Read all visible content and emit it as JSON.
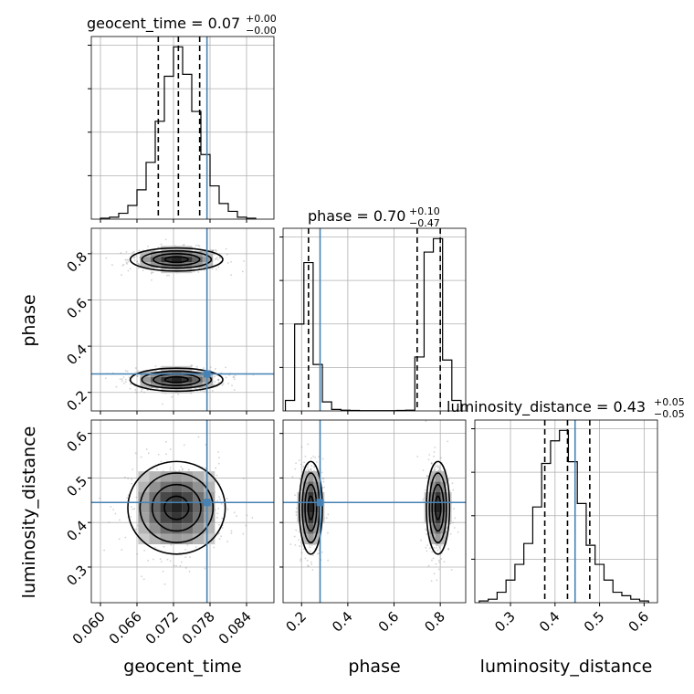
{
  "figure": {
    "type": "corner-plot",
    "parameters": [
      "geocent_time",
      "phase",
      "luminosity_distance"
    ]
  },
  "panel_titles": {
    "geocent_time": {
      "label": "geocent_time = 0.07",
      "sup": "+0.00",
      "sub": "−0.00"
    },
    "phase": {
      "label": "phase = 0.70",
      "sup": "+0.10",
      "sub": "−0.47"
    },
    "luminosity_distance": {
      "label": "luminosity_distance = 0.43",
      "sup": "+0.05",
      "sub": "−0.05"
    }
  },
  "axis_labels": {
    "geocent_time": "geocent_time",
    "phase": "phase",
    "luminosity_distance": "luminosity_distance"
  },
  "colors": {
    "truth": "#4682b4",
    "histogram": "#000000",
    "grid": "#b0b0b0",
    "samples": "#7f7f7f"
  },
  "chart_data": {
    "type": "corner",
    "grid": true,
    "truths": {
      "geocent_time": 0.0775,
      "phase": 0.28,
      "luminosity_distance": 0.445
    },
    "ranges": {
      "geocent_time": [
        0.0585,
        0.0885
      ],
      "phase": [
        0.12,
        0.91
      ],
      "luminosity_distance": [
        0.22,
        0.63
      ]
    },
    "ticks": {
      "geocent_time": {
        "values": [
          0.06,
          0.066,
          0.072,
          0.078,
          0.084
        ],
        "labels": [
          "0.060",
          "0.066",
          "0.072",
          "0.078",
          "0.084"
        ]
      },
      "phase": {
        "values": [
          0.2,
          0.4,
          0.6,
          0.8
        ],
        "labels": [
          "0.2",
          "0.4",
          "0.6",
          "0.8"
        ]
      },
      "luminosity_distance": {
        "values": [
          0.3,
          0.4,
          0.5,
          0.6
        ],
        "labels": [
          "0.3",
          "0.4",
          "0.5",
          "0.6"
        ]
      }
    },
    "quantiles": {
      "geocent_time": [
        0.0695,
        0.0728,
        0.0763
      ],
      "phase": [
        0.23,
        0.7,
        0.8
      ],
      "luminosity_distance": [
        0.377,
        0.428,
        0.478
      ]
    },
    "histograms": {
      "geocent_time": {
        "bin_edges": [
          0.06,
          0.0615,
          0.063,
          0.0645,
          0.066,
          0.0675,
          0.069,
          0.0705,
          0.072,
          0.0735,
          0.075,
          0.0765,
          0.078,
          0.0795,
          0.081,
          0.0825,
          0.084,
          0.0855
        ],
        "counts": [
          0.005,
          0.01,
          0.03,
          0.07,
          0.15,
          0.29,
          0.5,
          0.73,
          0.88,
          0.74,
          0.55,
          0.33,
          0.17,
          0.08,
          0.04,
          0.01,
          0.005
        ]
      },
      "phase": {
        "bin_edges": [
          0.13,
          0.17,
          0.21,
          0.25,
          0.29,
          0.33,
          0.37,
          0.41,
          0.45,
          0.49,
          0.53,
          0.57,
          0.61,
          0.65,
          0.69,
          0.73,
          0.77,
          0.81,
          0.85,
          0.89
        ],
        "counts": [
          0.07,
          0.58,
          0.99,
          0.31,
          0.06,
          0.01,
          0.005,
          0.003,
          0.002,
          0.002,
          0.002,
          0.002,
          0.003,
          0.005,
          0.36,
          1.06,
          1.15,
          0.34,
          0.07
        ]
      },
      "luminosity_distance": {
        "bin_edges": [
          0.23,
          0.25,
          0.27,
          0.29,
          0.31,
          0.33,
          0.35,
          0.37,
          0.39,
          0.41,
          0.43,
          0.45,
          0.47,
          0.49,
          0.51,
          0.53,
          0.55,
          0.57,
          0.59,
          0.61
        ],
        "counts": [
          0.01,
          0.02,
          0.06,
          0.13,
          0.22,
          0.34,
          0.55,
          0.8,
          0.93,
          0.99,
          0.81,
          0.57,
          0.33,
          0.22,
          0.13,
          0.06,
          0.04,
          0.02,
          0.01
        ]
      }
    },
    "density_2d": [
      {
        "x": "geocent_time",
        "y": "phase",
        "modes": [
          {
            "center": [
              0.0725,
              0.775
            ],
            "sigma": [
              0.0038,
              0.025
            ]
          },
          {
            "center": [
              0.0725,
              0.255
            ],
            "sigma": [
              0.0038,
              0.025
            ]
          }
        ]
      },
      {
        "x": "geocent_time",
        "y": "luminosity_distance",
        "modes": [
          {
            "center": [
              0.0725,
              0.433
            ],
            "sigma": [
              0.004,
              0.052
            ]
          }
        ]
      },
      {
        "x": "phase",
        "y": "luminosity_distance",
        "modes": [
          {
            "center": [
              0.24,
              0.433
            ],
            "sigma": [
              0.025,
              0.052
            ]
          },
          {
            "center": [
              0.79,
              0.433
            ],
            "sigma": [
              0.025,
              0.052
            ]
          }
        ]
      }
    ]
  }
}
